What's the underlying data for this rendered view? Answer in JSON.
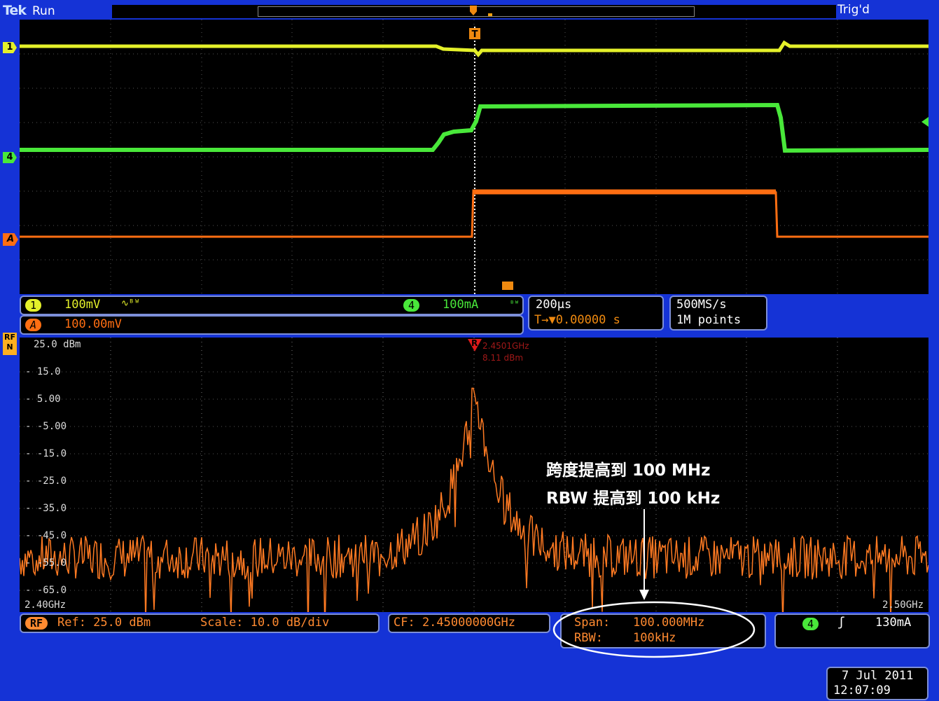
{
  "header": {
    "logo": "Tek",
    "status": "Run",
    "trigger_status": "Trig'd"
  },
  "colors": {
    "ch1": "#e4f02a",
    "ch4": "#49e83a",
    "math": "#ff6e12",
    "rf": "#ff8a30",
    "panel": "#1533d6"
  },
  "channels": {
    "ch1": {
      "badge": "1",
      "scale": "100mV",
      "coupling_glyph": "∿ᴮᵂ"
    },
    "ch4": {
      "badge": "4",
      "scale": "100mA",
      "bw_glyph": "ᴮᵂ"
    },
    "math": {
      "badge": "A",
      "scale": "100.00mV"
    },
    "side_markers": [
      "1",
      "4",
      "A"
    ]
  },
  "horizontal": {
    "timebase": "200µs",
    "trigger_pos": "T→▼0.00000 s"
  },
  "acquisition": {
    "sample_rate": "500MS/s",
    "record": "1M points"
  },
  "rf": {
    "badge": "RF",
    "side_marker": "RF\nN",
    "ref": "Ref: 25.0 dBm",
    "scale": "Scale: 10.0 dB/div",
    "center_freq": "CF: 2.45000000GHz",
    "span_label": "Span:",
    "span_value": "100.000MHz",
    "rbw_label": "RBW:",
    "rbw_value": "100kHz",
    "marker_label": "R",
    "marker_freq": "2.4501GHz",
    "marker_level": "8.11 dBm",
    "y_ticks": [
      "25.0 dBm",
      "15.0",
      "5.00",
      "-5.00",
      "-15.0",
      "-25.0",
      "-35.0",
      "-45.0",
      "-55.0",
      "-65.0"
    ],
    "x_start": "2.40GHz",
    "x_end": "2.50GHz"
  },
  "trigger": {
    "source_badge": "4",
    "slope_icon": "rising-edge",
    "slope_glyph": "ʃ",
    "level": "130mA"
  },
  "annotation": {
    "line1": "跨度提高到 100 MHz",
    "line2": "RBW 提高到 100 kHz"
  },
  "datetime": {
    "date": "7 Jul  2011",
    "time": "12:07:09"
  }
}
